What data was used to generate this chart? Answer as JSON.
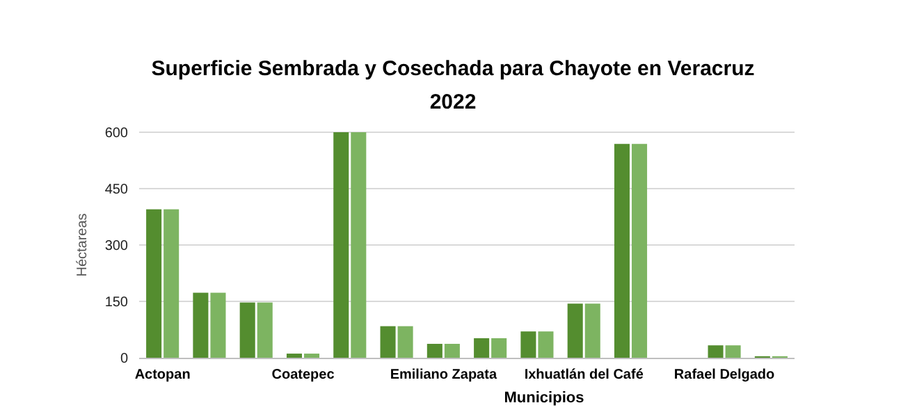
{
  "chart_data": {
    "type": "bar",
    "title": "Superficie Sembrada y Cosechada para Chayote en Veracruz 2022",
    "xlabel": "Municipios",
    "ylabel": "Héctareas",
    "categories": [
      "Actopan",
      null,
      null,
      "Coatepec",
      null,
      null,
      "Emiliano Zapata",
      null,
      null,
      "Ixhuatlán del Café",
      null,
      null,
      "Rafael Delgado",
      null
    ],
    "series": [
      {
        "color": "#548d2f",
        "values": [
          395,
          173,
          147,
          11,
          600,
          84,
          37,
          52,
          70,
          144,
          569,
          null,
          33,
          4
        ]
      },
      {
        "color": "#7db461",
        "values": [
          395,
          173,
          147,
          11,
          600,
          84,
          37,
          52,
          70,
          144,
          569,
          null,
          33,
          4
        ]
      }
    ],
    "ylim": [
      0,
      600
    ],
    "yticks": [
      0,
      150,
      300,
      450,
      600
    ],
    "grid": "y"
  }
}
